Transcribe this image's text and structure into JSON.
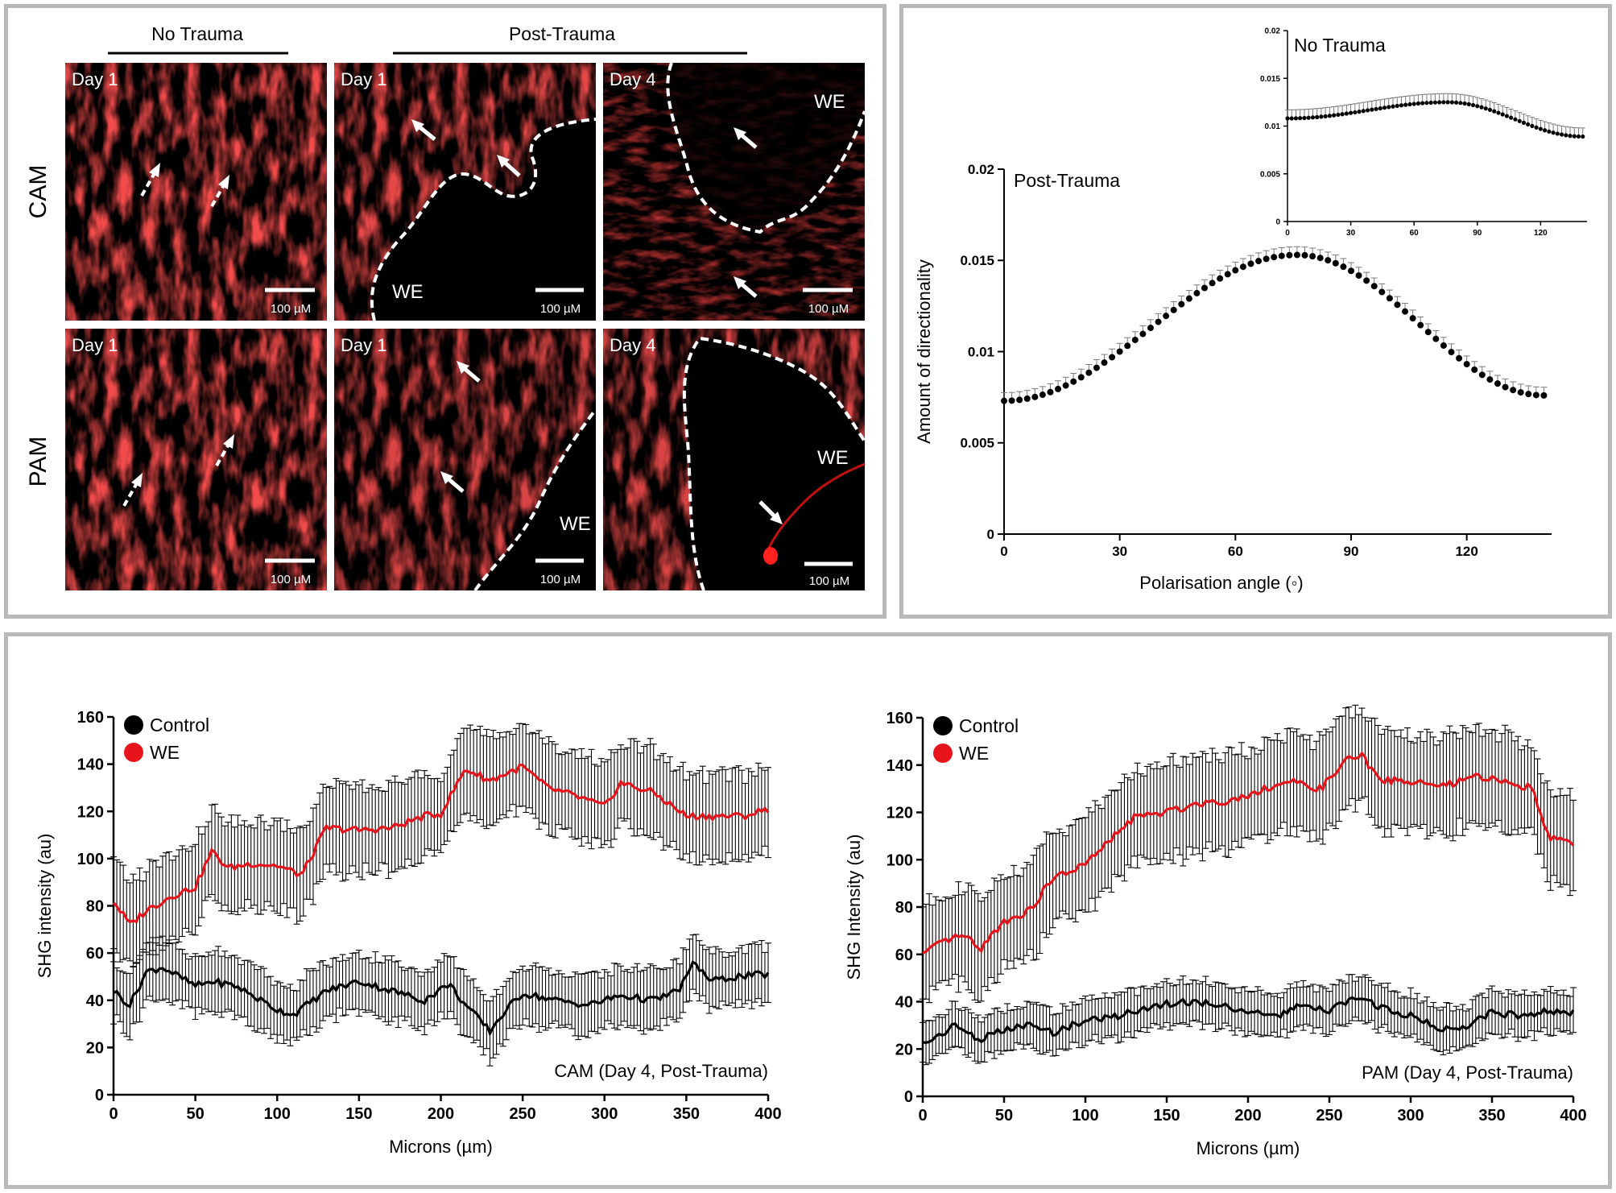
{
  "micrograph_panel": {
    "column_headers": [
      "No Trauma",
      "Post-Trauma"
    ],
    "row_labels": [
      "CAM",
      "PAM"
    ],
    "tiles": [
      {
        "day": "Day 1",
        "scale": "100 µM",
        "we": ""
      },
      {
        "day": "Day 1",
        "scale": "100 µM",
        "we": "WE"
      },
      {
        "day": "Day 4",
        "scale": "100 µM",
        "we": "WE"
      },
      {
        "day": "Day 1",
        "scale": "100 µM",
        "we": ""
      },
      {
        "day": "Day 1",
        "scale": "100 µM",
        "we": "WE"
      },
      {
        "day": "Day 4",
        "scale": "100 µM",
        "we": "WE"
      }
    ],
    "colors": {
      "fiber": "#ff1a1a",
      "background": "#000000",
      "dark_fiber": "#4a0000"
    }
  },
  "chart_data": [
    {
      "id": "directionality-post",
      "type": "scatter",
      "title": "Post-Trauma",
      "xlabel": "Polarisation angle (◦)",
      "ylabel": "Amount of directionality",
      "xlim": [
        0,
        142
      ],
      "ylim": [
        0,
        0.02
      ],
      "xticks": [
        "0",
        "30",
        "60",
        "90",
        "120"
      ],
      "yticks": [
        "0",
        "0.005",
        "0.01",
        "0.015",
        "0.02"
      ],
      "model": {
        "base": 0.0073,
        "peak": 0.0153,
        "peak_x": 76,
        "end_y": 0.0076,
        "step": 2,
        "error": 0.00045
      },
      "color": "#000000"
    },
    {
      "id": "directionality-none",
      "type": "scatter",
      "title": "No Trauma",
      "xlim": [
        0,
        142
      ],
      "ylim": [
        0,
        0.02
      ],
      "xticks": [
        "0",
        "30",
        "60",
        "90",
        "120"
      ],
      "yticks": [
        "0",
        "0.005",
        "0.01",
        "0.015",
        "0.02"
      ],
      "model": {
        "base": 0.0108,
        "peak": 0.0125,
        "peak_x": 76,
        "end_y": 0.0089,
        "step": 2,
        "error": 0.0009
      },
      "color": "#000000"
    },
    {
      "id": "shg-cam",
      "type": "line",
      "annotation": "CAM (Day 4, Post-Trauma)",
      "xlabel": "Microns (µm)",
      "ylabel": "SHG intensity (au)",
      "xlim": [
        0,
        400
      ],
      "ylim": [
        0,
        160
      ],
      "xticks": [
        "0",
        "50",
        "100",
        "150",
        "200",
        "250",
        "300",
        "350",
        "400"
      ],
      "yticks": [
        "0",
        "20",
        "40",
        "60",
        "80",
        "100",
        "120",
        "140",
        "160"
      ],
      "legend": [
        "Control",
        "WE"
      ],
      "series": [
        {
          "name": "WE",
          "color": "#e8141c",
          "error": 18,
          "x": [
            0,
            10,
            20,
            35,
            50,
            60,
            70,
            85,
            100,
            115,
            130,
            150,
            170,
            190,
            200,
            215,
            230,
            250,
            265,
            280,
            300,
            310,
            330,
            350,
            370,
            385,
            400
          ],
          "y": [
            82,
            72,
            78,
            84,
            88,
            103,
            96,
            98,
            97,
            93,
            113,
            112,
            113,
            118,
            119,
            138,
            133,
            139,
            130,
            127,
            122,
            132,
            128,
            118,
            118,
            118,
            121
          ]
        },
        {
          "name": "Control",
          "color": "#000000",
          "error": 12,
          "x": [
            0,
            10,
            20,
            30,
            50,
            60,
            75,
            90,
            100,
            110,
            130,
            150,
            170,
            190,
            205,
            215,
            230,
            240,
            250,
            270,
            290,
            310,
            330,
            345,
            355,
            365,
            380,
            400
          ],
          "y": [
            44,
            38,
            52,
            54,
            46,
            48,
            46,
            40,
            36,
            34,
            44,
            48,
            44,
            40,
            47,
            38,
            27,
            36,
            43,
            40,
            38,
            42,
            40,
            44,
            56,
            48,
            50,
            51
          ]
        }
      ]
    },
    {
      "id": "shg-pam",
      "type": "line",
      "annotation": "PAM (Day 4, Post-Trauma)",
      "xlabel": "Microns (µm)",
      "ylabel": "SHG Intensity (au)",
      "xlim": [
        0,
        400
      ],
      "ylim": [
        0,
        160
      ],
      "xticks": [
        "0",
        "50",
        "100",
        "150",
        "200",
        "250",
        "300",
        "350",
        "400"
      ],
      "yticks": [
        "0",
        "20",
        "40",
        "60",
        "80",
        "100",
        "120",
        "140",
        "160"
      ],
      "legend": [
        "Control",
        "WE"
      ],
      "series": [
        {
          "name": "WE",
          "color": "#e8141c",
          "error": 20,
          "x": [
            0,
            15,
            25,
            35,
            50,
            65,
            80,
            100,
            115,
            130,
            150,
            170,
            190,
            210,
            225,
            245,
            260,
            270,
            280,
            300,
            320,
            340,
            360,
            375,
            385,
            400
          ],
          "y": [
            60,
            66,
            68,
            62,
            74,
            78,
            92,
            98,
            108,
            118,
            120,
            124,
            125,
            130,
            133,
            130,
            142,
            144,
            134,
            133,
            131,
            135,
            133,
            130,
            110,
            106
          ]
        },
        {
          "name": "Control",
          "color": "#000000",
          "error": 9,
          "x": [
            0,
            10,
            20,
            35,
            50,
            65,
            80,
            100,
            120,
            140,
            160,
            180,
            200,
            215,
            230,
            250,
            265,
            280,
            300,
            320,
            335,
            350,
            365,
            385,
            400
          ],
          "y": [
            22,
            26,
            30,
            24,
            28,
            30,
            27,
            32,
            34,
            38,
            40,
            39,
            36,
            33,
            38,
            36,
            42,
            38,
            34,
            28,
            30,
            36,
            34,
            36,
            35
          ]
        }
      ]
    }
  ]
}
